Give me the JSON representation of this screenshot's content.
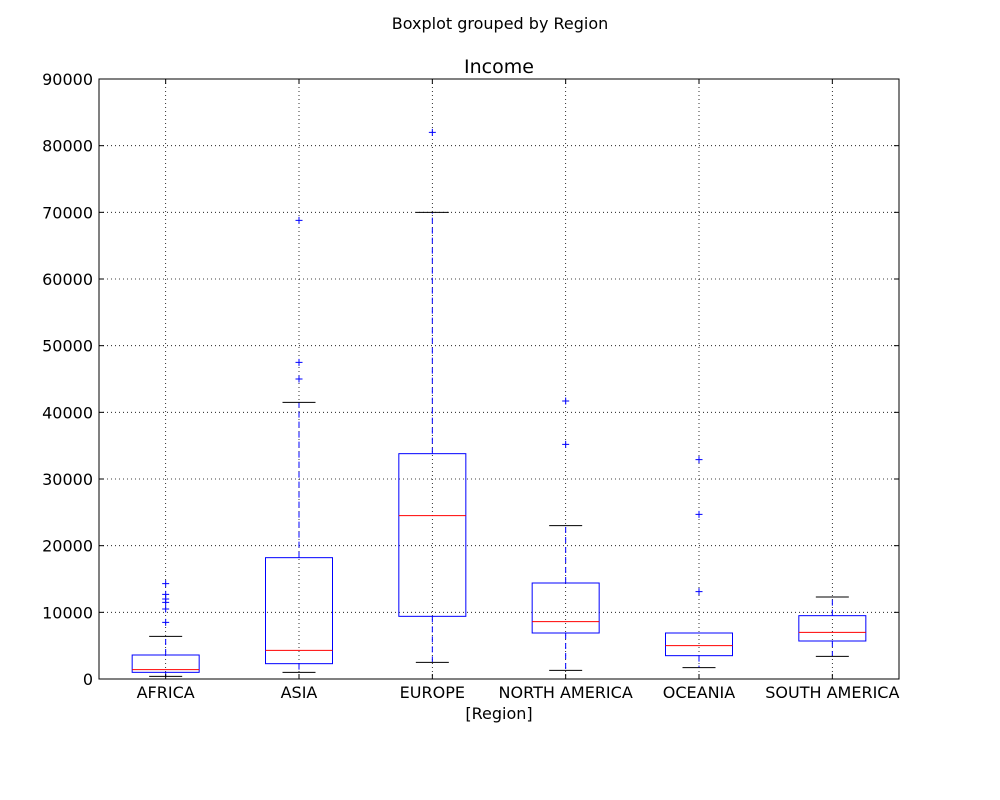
{
  "chart_data": {
    "type": "boxplot",
    "suptitle": "Boxplot grouped by Region",
    "title": "Income",
    "xlabel": "[Region]",
    "ylabel": "",
    "ylim": [
      0,
      90000
    ],
    "yticks": [
      0,
      10000,
      20000,
      30000,
      40000,
      50000,
      60000,
      70000,
      80000,
      90000
    ],
    "grid": true,
    "box_color": "#0000ff",
    "median_color": "#ff0000",
    "categories": [
      "AFRICA",
      "ASIA",
      "EUROPE",
      "NORTH AMERICA",
      "OCEANIA",
      "SOUTH AMERICA"
    ],
    "boxes": [
      {
        "whisker_low": 400,
        "q1": 1000,
        "median": 1400,
        "q3": 3600,
        "whisker_high": 6400,
        "outliers": [
          8500,
          10500,
          11500,
          12000,
          12700,
          14300
        ]
      },
      {
        "whisker_low": 1000,
        "q1": 2300,
        "median": 4300,
        "q3": 18200,
        "whisker_high": 41500,
        "outliers": [
          45000,
          47500,
          68800
        ]
      },
      {
        "whisker_low": 2500,
        "q1": 9400,
        "median": 24500,
        "q3": 33800,
        "whisker_high": 70000,
        "outliers": [
          82000
        ]
      },
      {
        "whisker_low": 1300,
        "q1": 6900,
        "median": 8600,
        "q3": 14400,
        "whisker_high": 23000,
        "outliers": [
          35200,
          41700
        ]
      },
      {
        "whisker_low": 1700,
        "q1": 3500,
        "median": 5000,
        "q3": 6900,
        "whisker_high": 6900,
        "outliers": [
          13100,
          24700,
          32900
        ]
      },
      {
        "whisker_low": 3400,
        "q1": 5700,
        "median": 7000,
        "q3": 9500,
        "whisker_high": 12300,
        "outliers": []
      }
    ]
  }
}
